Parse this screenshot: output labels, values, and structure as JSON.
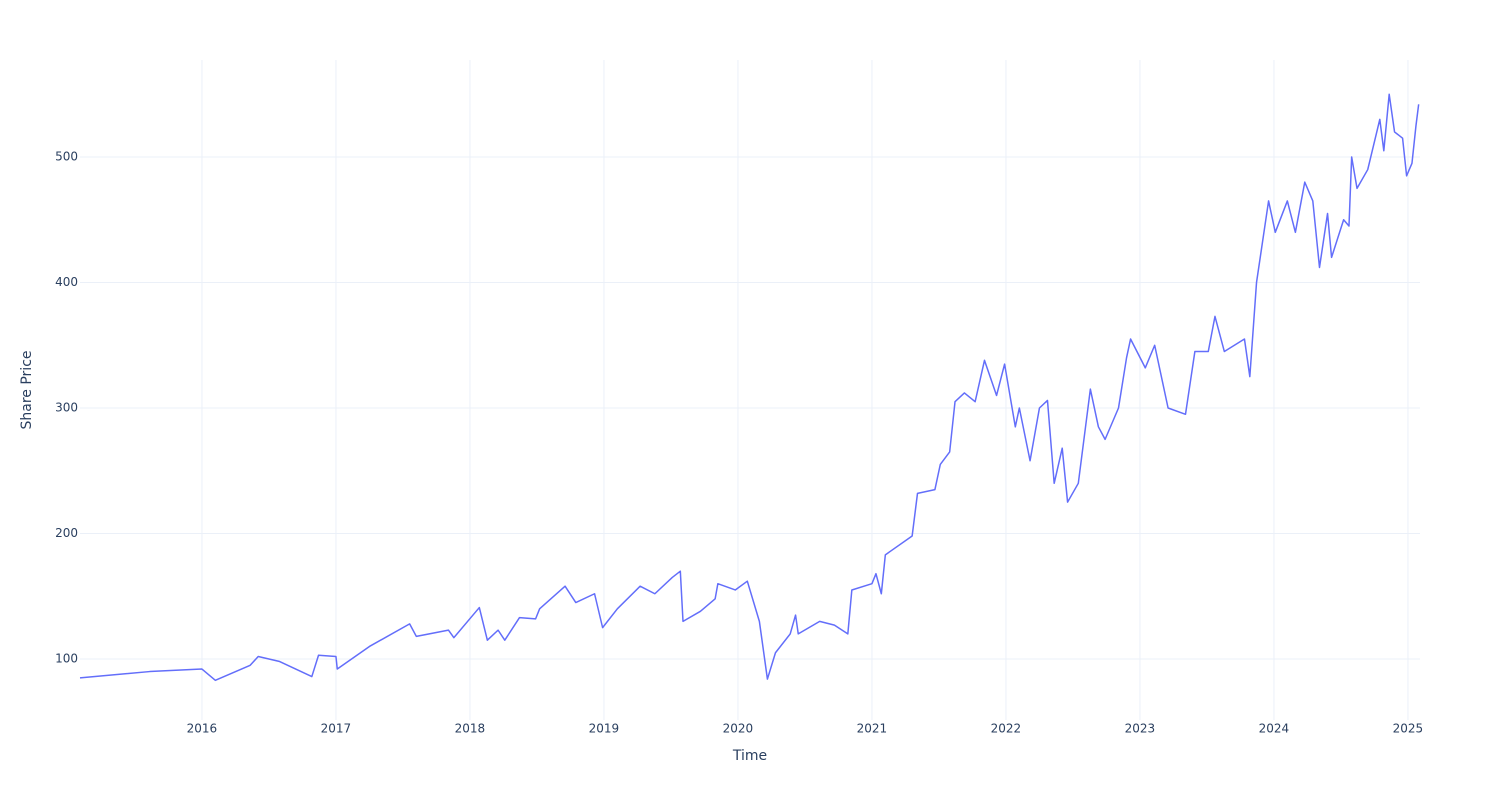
{
  "chart_data": {
    "type": "line",
    "x_label": "Time",
    "y_label": "Share Price",
    "xlim": [
      2015.09,
      2025.09
    ],
    "xticks": [
      2016,
      2017,
      2018,
      2019,
      2020,
      2021,
      2022,
      2023,
      2024,
      2025
    ],
    "ylim": [
      51.4,
      577.3
    ],
    "yticks": [
      100,
      200,
      300,
      400,
      500
    ],
    "grid": true,
    "color": "#636efa",
    "x": [
      2015.09,
      2015.61,
      2016.0,
      2016.1,
      2016.36,
      2016.42,
      2016.58,
      2016.82,
      2016.87,
      2017.0,
      2017.01,
      2017.25,
      2017.55,
      2017.6,
      2017.84,
      2017.88,
      2018.07,
      2018.13,
      2018.21,
      2018.26,
      2018.37,
      2018.49,
      2018.52,
      2018.71,
      2018.79,
      2018.93,
      2018.99,
      2019.1,
      2019.27,
      2019.38,
      2019.51,
      2019.57,
      2019.59,
      2019.72,
      2019.83,
      2019.85,
      2019.98,
      2020.07,
      2020.16,
      2020.22,
      2020.28,
      2020.39,
      2020.43,
      2020.45,
      2020.61,
      2020.72,
      2020.82,
      2020.85,
      2021.0,
      2021.03,
      2021.07,
      2021.1,
      2021.3,
      2021.34,
      2021.47,
      2021.51,
      2021.58,
      2021.62,
      2021.69,
      2021.77,
      2021.84,
      2021.93,
      2021.99,
      2022.07,
      2022.1,
      2022.18,
      2022.25,
      2022.31,
      2022.36,
      2022.42,
      2022.46,
      2022.54,
      2022.63,
      2022.69,
      2022.74,
      2022.84,
      2022.9,
      2022.93,
      2023.04,
      2023.11,
      2023.21,
      2023.34,
      2023.41,
      2023.51,
      2023.56,
      2023.63,
      2023.78,
      2023.82,
      2023.87,
      2023.96,
      2024.01,
      2024.1,
      2024.16,
      2024.23,
      2024.29,
      2024.34,
      2024.4,
      2024.43,
      2024.52,
      2024.56,
      2024.58,
      2024.62,
      2024.7,
      2024.79,
      2024.82,
      2024.86,
      2024.9,
      2024.96,
      2024.99,
      2025.03,
      2025.06,
      2025.08
    ],
    "values": [
      85,
      90,
      92,
      83,
      95,
      102,
      98,
      86,
      103,
      102,
      92,
      110,
      128,
      118,
      123,
      117,
      141,
      115,
      123,
      115,
      133,
      132,
      140,
      158,
      145,
      152,
      125,
      140,
      158,
      152,
      165,
      170,
      130,
      138,
      148,
      160,
      155,
      162,
      130,
      84,
      105,
      120,
      135,
      120,
      130,
      127,
      120,
      155,
      160,
      168,
      152,
      183,
      198,
      232,
      235,
      255,
      265,
      305,
      312,
      305,
      338,
      310,
      335,
      285,
      300,
      258,
      300,
      306,
      240,
      268,
      225,
      240,
      315,
      285,
      275,
      300,
      340,
      355,
      332,
      350,
      300,
      295,
      345,
      345,
      373,
      345,
      355,
      325,
      400,
      465,
      440,
      465,
      440,
      480,
      465,
      412,
      455,
      420,
      450,
      445,
      500,
      475,
      490,
      530,
      505,
      550,
      520,
      515,
      485,
      495,
      525,
      542
    ]
  }
}
